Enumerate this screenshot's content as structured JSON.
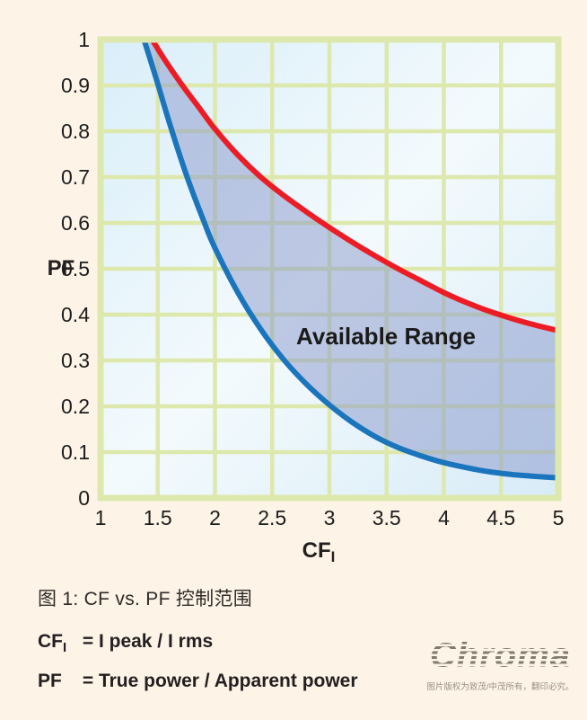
{
  "chart_data": {
    "type": "line",
    "title": "",
    "xlabel_main": "CF",
    "xlabel_sub": "I",
    "ylabel": "PF",
    "xlim": [
      1,
      5
    ],
    "ylim": [
      0,
      1
    ],
    "grid": true,
    "x_ticks": [
      "1",
      "1.5",
      "2",
      "2.5",
      "3",
      "3.5",
      "4",
      "4.5",
      "5"
    ],
    "y_ticks": [
      "1",
      "0.9",
      "0.8",
      "0.7",
      "0.6",
      "0.5",
      "0.4",
      "0.3",
      "0.2",
      "0.1",
      "0"
    ],
    "annotation": "Available Range",
    "legend_position": "none",
    "series": [
      {
        "name": "upper-limit-curve",
        "color": "#ed1c24",
        "points": [
          [
            1.45,
            1.0
          ],
          [
            1.55,
            0.96
          ],
          [
            1.7,
            0.905
          ],
          [
            1.85,
            0.855
          ],
          [
            2.0,
            0.805
          ],
          [
            2.2,
            0.748
          ],
          [
            2.4,
            0.7
          ],
          [
            2.6,
            0.66
          ],
          [
            2.8,
            0.624
          ],
          [
            3.0,
            0.59
          ],
          [
            3.2,
            0.558
          ],
          [
            3.4,
            0.528
          ],
          [
            3.6,
            0.5
          ],
          [
            3.8,
            0.474
          ],
          [
            4.0,
            0.448
          ],
          [
            4.2,
            0.426
          ],
          [
            4.4,
            0.407
          ],
          [
            4.6,
            0.391
          ],
          [
            4.8,
            0.377
          ],
          [
            5.0,
            0.365
          ]
        ]
      },
      {
        "name": "lower-limit-curve",
        "color": "#1b75bc",
        "points": [
          [
            1.38,
            1.0
          ],
          [
            1.48,
            0.92
          ],
          [
            1.6,
            0.82
          ],
          [
            1.75,
            0.705
          ],
          [
            1.9,
            0.605
          ],
          [
            2.0,
            0.545
          ],
          [
            2.2,
            0.448
          ],
          [
            2.4,
            0.368
          ],
          [
            2.6,
            0.302
          ],
          [
            2.8,
            0.248
          ],
          [
            3.0,
            0.203
          ],
          [
            3.2,
            0.165
          ],
          [
            3.4,
            0.134
          ],
          [
            3.6,
            0.11
          ],
          [
            3.8,
            0.092
          ],
          [
            4.0,
            0.077
          ],
          [
            4.2,
            0.066
          ],
          [
            4.4,
            0.057
          ],
          [
            4.6,
            0.051
          ],
          [
            4.8,
            0.047
          ],
          [
            5.0,
            0.044
          ]
        ]
      }
    ],
    "fill_between_color": "rgba(136,150,201,0.5)",
    "grid_color": "#dde8ac",
    "plot_bg_colors": [
      "#d9eef9",
      "#f3fafd",
      "#d7ebf7"
    ]
  },
  "caption": "图 1: CF vs. PF 控制范围",
  "formulas": [
    {
      "label_main": "CF",
      "label_sub": "I",
      "definition": "= I peak / I rms"
    },
    {
      "label_main": "PF",
      "label_sub": "",
      "definition": "= True power / Apparent power"
    }
  ],
  "logo": {
    "text": "Chroma",
    "watermark": "图片版权为致茂/中茂所有，翻印必究。"
  },
  "colors": {
    "page_background": "#fdf3e7",
    "text": "#231f20"
  }
}
